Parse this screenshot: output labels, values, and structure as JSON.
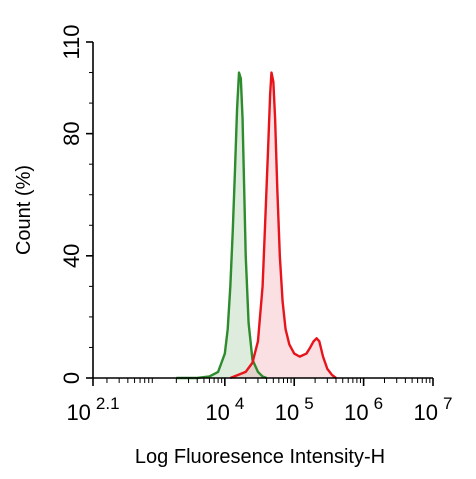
{
  "chart_data": {
    "type": "area",
    "xlabel": "Log Fluoresence Intensity-H",
    "ylabel": "Count  (%)",
    "x_scale": "log",
    "xlim": [
      125.89,
      10000000
    ],
    "ylim": [
      0,
      110
    ],
    "x_ticks": [
      {
        "value": 125.89,
        "base": "10",
        "exp": "2.1"
      },
      {
        "value": 10000,
        "base": "10",
        "exp": "4"
      },
      {
        "value": 100000,
        "base": "10",
        "exp": "5"
      },
      {
        "value": 1000000,
        "base": "10",
        "exp": "6"
      },
      {
        "value": 10000000,
        "base": "10",
        "exp": "7"
      }
    ],
    "y_ticks": [
      {
        "value": 0,
        "label": "0"
      },
      {
        "value": 40,
        "label": "40"
      },
      {
        "value": 80,
        "label": "80"
      },
      {
        "value": 110,
        "label": "110"
      }
    ],
    "grid": false,
    "series": [
      {
        "color": "#2e8b2e",
        "fill": "#2e8b2e",
        "x": [
          2000,
          4000,
          6000,
          8000,
          10000,
          11000,
          12000,
          13000,
          14000,
          15000,
          16000,
          17000,
          18000,
          19000,
          20000,
          22000,
          25000,
          30000,
          35000,
          40000
        ],
        "y": [
          0,
          0,
          0.5,
          2,
          8,
          16,
          30,
          48,
          68,
          88,
          100,
          98,
          85,
          62,
          40,
          18,
          6,
          2,
          0.5,
          0
        ]
      },
      {
        "color": "#e8141c",
        "fill": "#f2a6ae",
        "x": [
          12000,
          20000,
          25000,
          30000,
          35000,
          38000,
          42000,
          45000,
          47000,
          50000,
          53000,
          57000,
          62000,
          68000,
          75000,
          85000,
          100000,
          120000,
          150000,
          170000,
          190000,
          210000,
          230000,
          260000,
          300000,
          350000,
          400000
        ],
        "y": [
          0,
          2,
          5,
          12,
          30,
          50,
          75,
          93,
          100,
          97,
          85,
          62,
          40,
          25,
          16,
          11,
          8,
          7,
          8,
          10,
          12,
          13,
          12,
          7,
          3,
          1,
          0
        ]
      }
    ]
  }
}
